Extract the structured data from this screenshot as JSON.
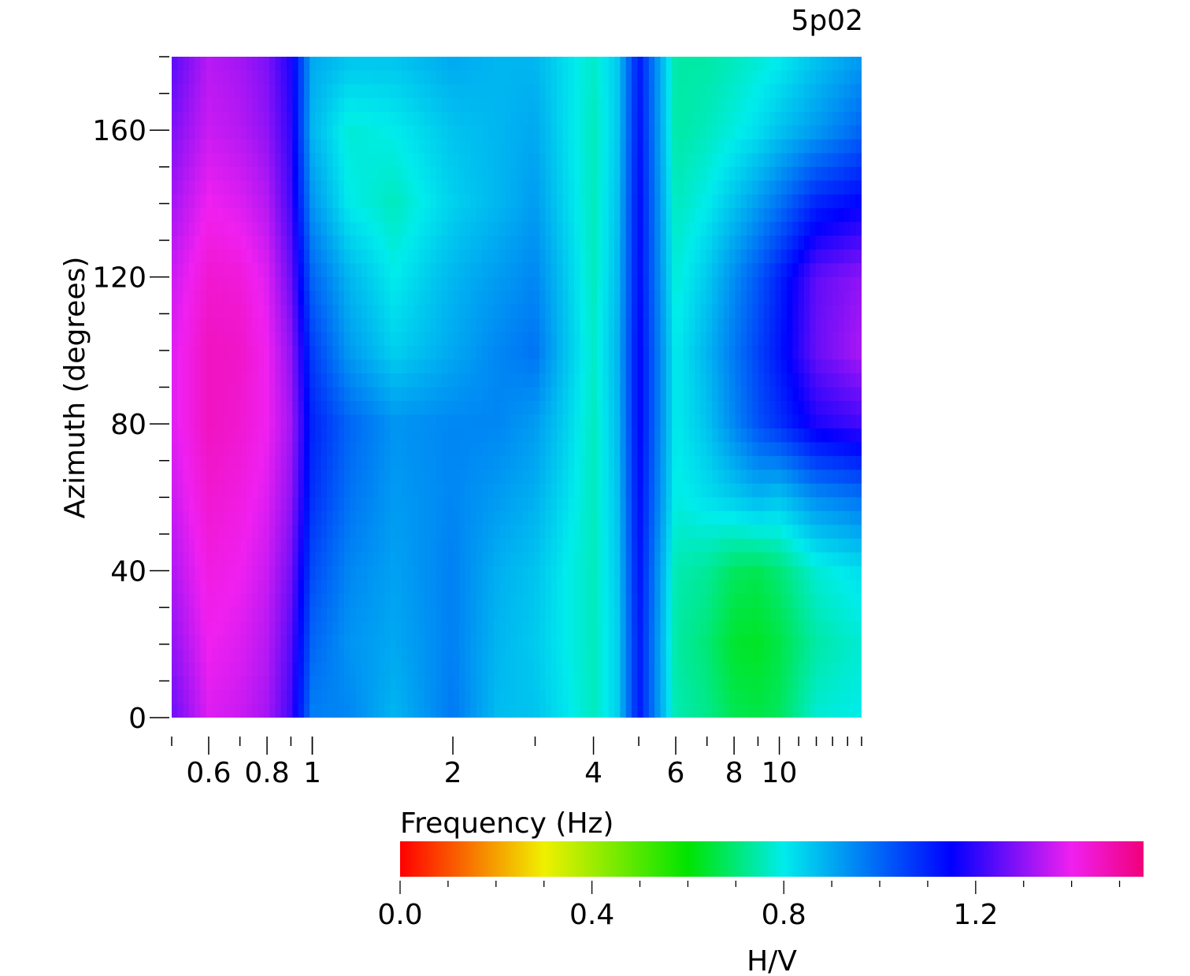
{
  "chart_data": {
    "type": "heatmap",
    "title": "5p02",
    "xlabel": "Frequency (Hz)",
    "ylabel": "Azimuth (degrees)",
    "x_scale": "log",
    "xlim": [
      0.5,
      15
    ],
    "ylim": [
      0,
      180
    ],
    "x_tick_labels": [
      "0.6",
      "0.8",
      "1",
      "2",
      "4",
      "6",
      "8",
      "10"
    ],
    "x_tick_values": [
      0.6,
      0.8,
      1,
      2,
      4,
      6,
      8,
      10
    ],
    "y_tick_labels": [
      "0",
      "40",
      "80",
      "120",
      "160"
    ],
    "y_tick_values": [
      0,
      40,
      80,
      120,
      160
    ],
    "colorbar": {
      "label": "H/V",
      "range": [
        0.0,
        1.55
      ],
      "tick_labels": [
        "0.0",
        "0.4",
        "0.8",
        "1.2"
      ],
      "tick_values": [
        0.0,
        0.4,
        0.8,
        1.2
      ],
      "colormap": [
        [
          0.0,
          "#ff0000"
        ],
        [
          0.3,
          "#f0f000"
        ],
        [
          0.6,
          "#00e400"
        ],
        [
          0.8,
          "#00ecec"
        ],
        [
          1.15,
          "#0000ff"
        ],
        [
          1.4,
          "#f020f0"
        ],
        [
          1.55,
          "#f0007a"
        ]
      ]
    },
    "frequencies": [
      0.5,
      0.6,
      0.7,
      0.8,
      0.9,
      1.0,
      1.2,
      1.5,
      2.0,
      2.5,
      3.0,
      3.5,
      4.0,
      4.5,
      5.0,
      6.0,
      7.0,
      8.0,
      9.0,
      10.0,
      12.0,
      15.0
    ],
    "azimuths": [
      0,
      20,
      40,
      60,
      80,
      100,
      120,
      140,
      160,
      180
    ],
    "hv_values": [
      [
        1.26,
        1.38,
        1.36,
        1.32,
        1.22,
        0.96,
        0.95,
        0.88,
        0.97,
        0.87,
        0.86,
        0.81,
        0.76,
        0.84,
        1.12,
        0.75,
        0.72,
        0.67,
        0.66,
        0.68,
        0.78,
        0.8
      ],
      [
        1.3,
        1.4,
        1.38,
        1.34,
        1.24,
        1.0,
        0.93,
        0.9,
        0.96,
        0.88,
        0.85,
        0.8,
        0.76,
        0.84,
        1.12,
        0.74,
        0.7,
        0.64,
        0.63,
        0.66,
        0.74,
        0.78
      ],
      [
        1.33,
        1.42,
        1.4,
        1.36,
        1.27,
        1.04,
        0.95,
        0.91,
        0.96,
        0.89,
        0.86,
        0.8,
        0.76,
        0.85,
        1.13,
        0.75,
        0.73,
        0.68,
        0.67,
        0.7,
        0.78,
        0.82
      ],
      [
        1.36,
        1.44,
        1.42,
        1.38,
        1.3,
        1.08,
        0.98,
        0.92,
        0.95,
        0.92,
        0.89,
        0.82,
        0.76,
        0.86,
        1.14,
        0.79,
        0.82,
        0.85,
        0.88,
        0.86,
        0.94,
        0.98
      ],
      [
        1.38,
        1.46,
        1.44,
        1.4,
        1.32,
        1.1,
        1.0,
        0.93,
        0.95,
        0.95,
        0.92,
        0.84,
        0.76,
        0.87,
        1.15,
        0.8,
        0.86,
        0.95,
        1.03,
        1.08,
        1.18,
        1.22
      ],
      [
        1.38,
        1.46,
        1.45,
        1.4,
        1.3,
        1.06,
        0.92,
        0.84,
        0.9,
        0.95,
        0.98,
        0.86,
        0.77,
        0.88,
        1.15,
        0.8,
        0.88,
        0.97,
        1.05,
        1.12,
        1.26,
        1.33
      ],
      [
        1.36,
        1.44,
        1.43,
        1.38,
        1.26,
        1.0,
        0.88,
        0.8,
        0.88,
        0.92,
        0.95,
        0.85,
        0.76,
        0.87,
        1.14,
        0.78,
        0.85,
        0.94,
        1.02,
        1.1,
        1.25,
        1.3
      ],
      [
        1.32,
        1.4,
        1.38,
        1.34,
        1.22,
        0.93,
        0.8,
        0.76,
        0.84,
        0.88,
        0.92,
        0.83,
        0.76,
        0.86,
        1.14,
        0.76,
        0.8,
        0.86,
        0.92,
        0.98,
        1.1,
        1.15
      ],
      [
        1.28,
        1.36,
        1.34,
        1.3,
        1.2,
        0.88,
        0.78,
        0.8,
        0.86,
        0.88,
        0.9,
        0.82,
        0.76,
        0.85,
        1.13,
        0.74,
        0.76,
        0.79,
        0.82,
        0.86,
        0.92,
        1.0
      ],
      [
        1.24,
        1.34,
        1.32,
        1.28,
        1.18,
        0.9,
        0.86,
        0.86,
        0.9,
        0.88,
        0.88,
        0.82,
        0.77,
        0.85,
        1.12,
        0.74,
        0.74,
        0.76,
        0.78,
        0.8,
        0.86,
        0.92
      ]
    ]
  }
}
